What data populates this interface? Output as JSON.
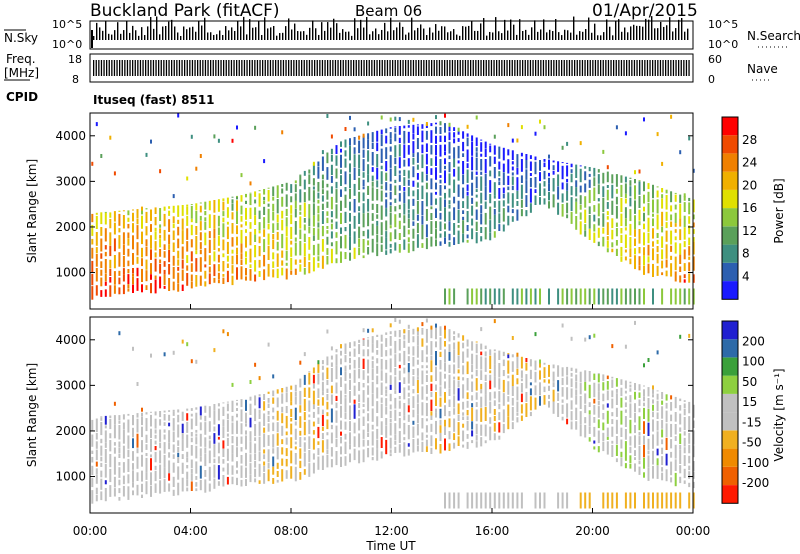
{
  "header": {
    "station": "Buckland Park (fitACF)",
    "beam": "Beam 06",
    "date": "01/Apr/2015"
  },
  "panels": {
    "nsky": {
      "label": "N.Sky",
      "y_tick_labels": [
        "10^5",
        "10^0"
      ],
      "right_label": "N.Search",
      "right_tick_labels": [
        "10^5",
        "10^0"
      ]
    },
    "freq": {
      "label_line1": "Freq.",
      "label_line2": "[MHz]",
      "y_tick_labels": [
        "18",
        "8"
      ],
      "right_label": "Nave",
      "right_tick_labels": [
        "60",
        "0"
      ]
    },
    "cpid": {
      "label": "CPID",
      "text": "Ituseq (fast) 8511"
    }
  },
  "colors": {
    "power_scale": [
      "#1a1aff",
      "#2c5fb0",
      "#3e8f80",
      "#5aa05a",
      "#8cc83c",
      "#e0e000",
      "#f0b000",
      "#f08000",
      "#f04a00",
      "#ff0000"
    ],
    "velocity_scale": [
      "#ff1a00",
      "#f06000",
      "#f08a00",
      "#f0b020",
      "#c0c0c0",
      "#c0c0c0",
      "#8ed040",
      "#3aa03a",
      "#2d6aa8",
      "#2020d0"
    ]
  },
  "chart_data": [
    {
      "type": "heatmap",
      "name": "power",
      "ylabel": "Slant Range [km]",
      "ylim": [
        200,
        4500
      ],
      "y_ticks": [
        1000,
        2000,
        3000,
        4000
      ],
      "x_ticks": [
        "00:00",
        "04:00",
        "08:00",
        "12:00",
        "16:00",
        "20:00",
        "00:00"
      ],
      "xlim_hours": [
        0,
        24
      ],
      "colorbar": {
        "label": "Power [dB]",
        "range": [
          0,
          32
        ],
        "tick_labels": [
          "4",
          "8",
          "12",
          "16",
          "20",
          "24",
          "28"
        ]
      },
      "echo_band": [
        {
          "hour": 0,
          "lower_km": 400,
          "upper_km": 2300,
          "power_db": 28
        },
        {
          "hour": 2,
          "lower_km": 500,
          "upper_km": 2400,
          "power_db": 28
        },
        {
          "hour": 4,
          "lower_km": 600,
          "upper_km": 2500,
          "power_db": 26
        },
        {
          "hour": 6,
          "lower_km": 750,
          "upper_km": 2700,
          "power_db": 24
        },
        {
          "hour": 8,
          "lower_km": 850,
          "upper_km": 3000,
          "power_db": 20
        },
        {
          "hour": 10,
          "lower_km": 1200,
          "upper_km": 3900,
          "power_db": 14
        },
        {
          "hour": 12,
          "lower_km": 1400,
          "upper_km": 4200,
          "power_db": 12
        },
        {
          "hour": 14,
          "lower_km": 1500,
          "upper_km": 4300,
          "power_db": 10
        },
        {
          "hour": 16,
          "lower_km": 1700,
          "upper_km": 3800,
          "power_db": 10
        },
        {
          "hour": 18,
          "lower_km": 2500,
          "upper_km": 3500,
          "power_db": 8
        },
        {
          "hour": 20,
          "lower_km": 1600,
          "upper_km": 3300,
          "power_db": 16
        },
        {
          "hour": 22,
          "lower_km": 900,
          "upper_km": 3000,
          "power_db": 22
        },
        {
          "hour": 24,
          "lower_km": 700,
          "upper_km": 2600,
          "power_db": 26
        }
      ]
    },
    {
      "type": "heatmap",
      "name": "velocity",
      "ylabel": "Slant Range [km]",
      "ylim": [
        200,
        4500
      ],
      "y_ticks": [
        1000,
        2000,
        3000,
        4000
      ],
      "x_ticks": [
        "00:00",
        "04:00",
        "08:00",
        "12:00",
        "16:00",
        "20:00",
        "00:00"
      ],
      "xlabel": "Time UT",
      "xlim_hours": [
        0,
        24
      ],
      "colorbar": {
        "label": "Velocity [m s⁻¹]",
        "range": [
          -250,
          250
        ],
        "tick_labels": [
          "-200",
          "-100",
          "-50",
          "-15",
          "15",
          "50",
          "100",
          "200"
        ]
      },
      "echo_band": [
        {
          "hour": 0,
          "lower_km": 400,
          "upper_km": 2300,
          "velocity_ms": 0
        },
        {
          "hour": 2,
          "lower_km": 500,
          "upper_km": 2400,
          "velocity_ms": 0
        },
        {
          "hour": 4,
          "lower_km": 600,
          "upper_km": 2500,
          "velocity_ms": 0
        },
        {
          "hour": 6,
          "lower_km": 750,
          "upper_km": 2700,
          "velocity_ms": -10
        },
        {
          "hour": 8,
          "lower_km": 850,
          "upper_km": 3000,
          "velocity_ms": -60
        },
        {
          "hour": 10,
          "lower_km": 1200,
          "upper_km": 3900,
          "velocity_ms": -20
        },
        {
          "hour": 12,
          "lower_km": 1400,
          "upper_km": 4200,
          "velocity_ms": 0
        },
        {
          "hour": 14,
          "lower_km": 1500,
          "upper_km": 4300,
          "velocity_ms": -40
        },
        {
          "hour": 16,
          "lower_km": 1700,
          "upper_km": 3800,
          "velocity_ms": -30
        },
        {
          "hour": 18,
          "lower_km": 2500,
          "upper_km": 3500,
          "velocity_ms": -50
        },
        {
          "hour": 20,
          "lower_km": 1600,
          "upper_km": 3300,
          "velocity_ms": 40
        },
        {
          "hour": 22,
          "lower_km": 900,
          "upper_km": 3000,
          "velocity_ms": 30
        },
        {
          "hour": 24,
          "lower_km": 700,
          "upper_km": 2600,
          "velocity_ms": 20
        }
      ]
    }
  ]
}
